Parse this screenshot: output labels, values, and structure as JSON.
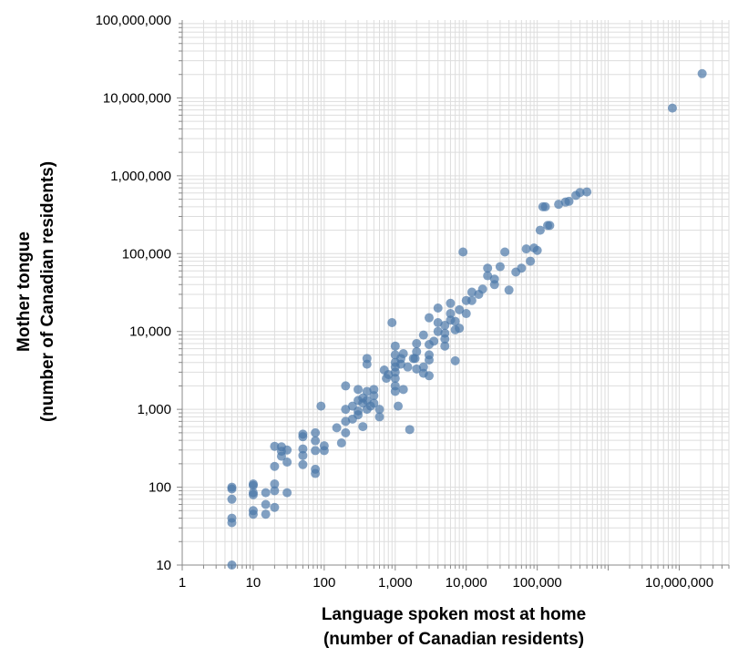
{
  "chart_data": {
    "type": "scatter",
    "title": "",
    "xlabel_lines": [
      "Language spoken most at home",
      "(number of Canadian residents)"
    ],
    "ylabel_lines": [
      "Mother tongue",
      "(number of Canadian residents)"
    ],
    "x_scale": "log",
    "y_scale": "log",
    "xlim": [
      1,
      50000000
    ],
    "ylim": [
      10,
      100000000
    ],
    "x_ticks": [
      {
        "value": 1,
        "label": "1"
      },
      {
        "value": 10,
        "label": "10"
      },
      {
        "value": 100,
        "label": "100"
      },
      {
        "value": 1000,
        "label": "1,000"
      },
      {
        "value": 10000,
        "label": "10,000"
      },
      {
        "value": 100000,
        "label": "100,000"
      },
      {
        "value": 10000000,
        "label": "10,000,000"
      }
    ],
    "y_ticks": [
      {
        "value": 10,
        "label": "10"
      },
      {
        "value": 100,
        "label": "100"
      },
      {
        "value": 1000,
        "label": "1,000"
      },
      {
        "value": 10000,
        "label": "10,000"
      },
      {
        "value": 100000,
        "label": "100,000"
      },
      {
        "value": 1000000,
        "label": "1,000,000"
      },
      {
        "value": 10000000,
        "label": "10,000,000"
      },
      {
        "value": 100000000,
        "label": "100,000,000"
      }
    ],
    "grid": true,
    "point_color": "#4c78a8",
    "points": [
      [
        5,
        10
      ],
      [
        5,
        35
      ],
      [
        5,
        40
      ],
      [
        5,
        70
      ],
      [
        5,
        95
      ],
      [
        5,
        100
      ],
      [
        10,
        45
      ],
      [
        10,
        50
      ],
      [
        10,
        80
      ],
      [
        10,
        85
      ],
      [
        10,
        105
      ],
      [
        10,
        110
      ],
      [
        15,
        45
      ],
      [
        15,
        60
      ],
      [
        15,
        85
      ],
      [
        20,
        55
      ],
      [
        20,
        90
      ],
      [
        20,
        110
      ],
      [
        20,
        185
      ],
      [
        20,
        335
      ],
      [
        25,
        250
      ],
      [
        25,
        290
      ],
      [
        25,
        330
      ],
      [
        30,
        85
      ],
      [
        30,
        210
      ],
      [
        30,
        300
      ],
      [
        50,
        195
      ],
      [
        50,
        255
      ],
      [
        50,
        310
      ],
      [
        50,
        445
      ],
      [
        50,
        480
      ],
      [
        75,
        150
      ],
      [
        75,
        170
      ],
      [
        75,
        295
      ],
      [
        75,
        395
      ],
      [
        75,
        500
      ],
      [
        90,
        1100
      ],
      [
        100,
        295
      ],
      [
        100,
        340
      ],
      [
        150,
        580
      ],
      [
        175,
        370
      ],
      [
        200,
        500
      ],
      [
        200,
        1000
      ],
      [
        200,
        2000
      ],
      [
        200,
        700
      ],
      [
        250,
        750
      ],
      [
        250,
        1100
      ],
      [
        300,
        1300
      ],
      [
        300,
        850
      ],
      [
        300,
        1800
      ],
      [
        300,
        950
      ],
      [
        350,
        600
      ],
      [
        350,
        1200
      ],
      [
        350,
        1400
      ],
      [
        400,
        4500
      ],
      [
        400,
        3800
      ],
      [
        400,
        1700
      ],
      [
        400,
        1000
      ],
      [
        400,
        1300
      ],
      [
        450,
        1100
      ],
      [
        500,
        1200
      ],
      [
        500,
        1500
      ],
      [
        500,
        1800
      ],
      [
        600,
        800
      ],
      [
        600,
        1000
      ],
      [
        700,
        3200
      ],
      [
        750,
        2500
      ],
      [
        800,
        2800
      ],
      [
        900,
        13000
      ],
      [
        1000,
        1700
      ],
      [
        1000,
        2000
      ],
      [
        1000,
        2500
      ],
      [
        1000,
        3000
      ],
      [
        1000,
        3500
      ],
      [
        1000,
        4000
      ],
      [
        1000,
        5000
      ],
      [
        1000,
        6500
      ],
      [
        1100,
        1100
      ],
      [
        1200,
        3800
      ],
      [
        1200,
        4500
      ],
      [
        1300,
        1800
      ],
      [
        1300,
        5200
      ],
      [
        1500,
        3500
      ],
      [
        1600,
        550
      ],
      [
        1800,
        4500
      ],
      [
        1900,
        4500
      ],
      [
        2000,
        5500
      ],
      [
        2000,
        7000
      ],
      [
        2000,
        3300
      ],
      [
        2500,
        2900
      ],
      [
        2500,
        3500
      ],
      [
        2500,
        9000
      ],
      [
        3000,
        4300
      ],
      [
        3000,
        2700
      ],
      [
        3000,
        5000
      ],
      [
        3000,
        6800
      ],
      [
        3000,
        15000
      ],
      [
        3500,
        7500
      ],
      [
        4000,
        10000
      ],
      [
        4000,
        13000
      ],
      [
        4000,
        20000
      ],
      [
        5000,
        8000
      ],
      [
        5000,
        9500
      ],
      [
        5000,
        12000
      ],
      [
        5000,
        6500
      ],
      [
        6000,
        14000
      ],
      [
        6000,
        17000
      ],
      [
        6000,
        23000
      ],
      [
        7000,
        4200
      ],
      [
        7000,
        10500
      ],
      [
        7000,
        13500
      ],
      [
        8000,
        19000
      ],
      [
        8000,
        11000
      ],
      [
        9000,
        105000
      ],
      [
        10000,
        17000
      ],
      [
        10000,
        25000
      ],
      [
        12000,
        25000
      ],
      [
        12000,
        32000
      ],
      [
        15000,
        30000
      ],
      [
        17000,
        35000
      ],
      [
        20000,
        52000
      ],
      [
        20000,
        65000
      ],
      [
        25000,
        40000
      ],
      [
        25000,
        47000
      ],
      [
        30000,
        68000
      ],
      [
        35000,
        105000
      ],
      [
        40000,
        34000
      ],
      [
        50000,
        58000
      ],
      [
        60000,
        65000
      ],
      [
        70000,
        115000
      ],
      [
        80000,
        80000
      ],
      [
        90000,
        118000
      ],
      [
        100000,
        110000
      ],
      [
        110000,
        200000
      ],
      [
        120000,
        400000
      ],
      [
        130000,
        400000
      ],
      [
        140000,
        230000
      ],
      [
        150000,
        230000
      ],
      [
        200000,
        430000
      ],
      [
        250000,
        460000
      ],
      [
        280000,
        470000
      ],
      [
        350000,
        560000
      ],
      [
        400000,
        610000
      ],
      [
        500000,
        620000
      ],
      [
        8000000,
        7400000
      ],
      [
        21000000,
        20500000
      ]
    ]
  }
}
